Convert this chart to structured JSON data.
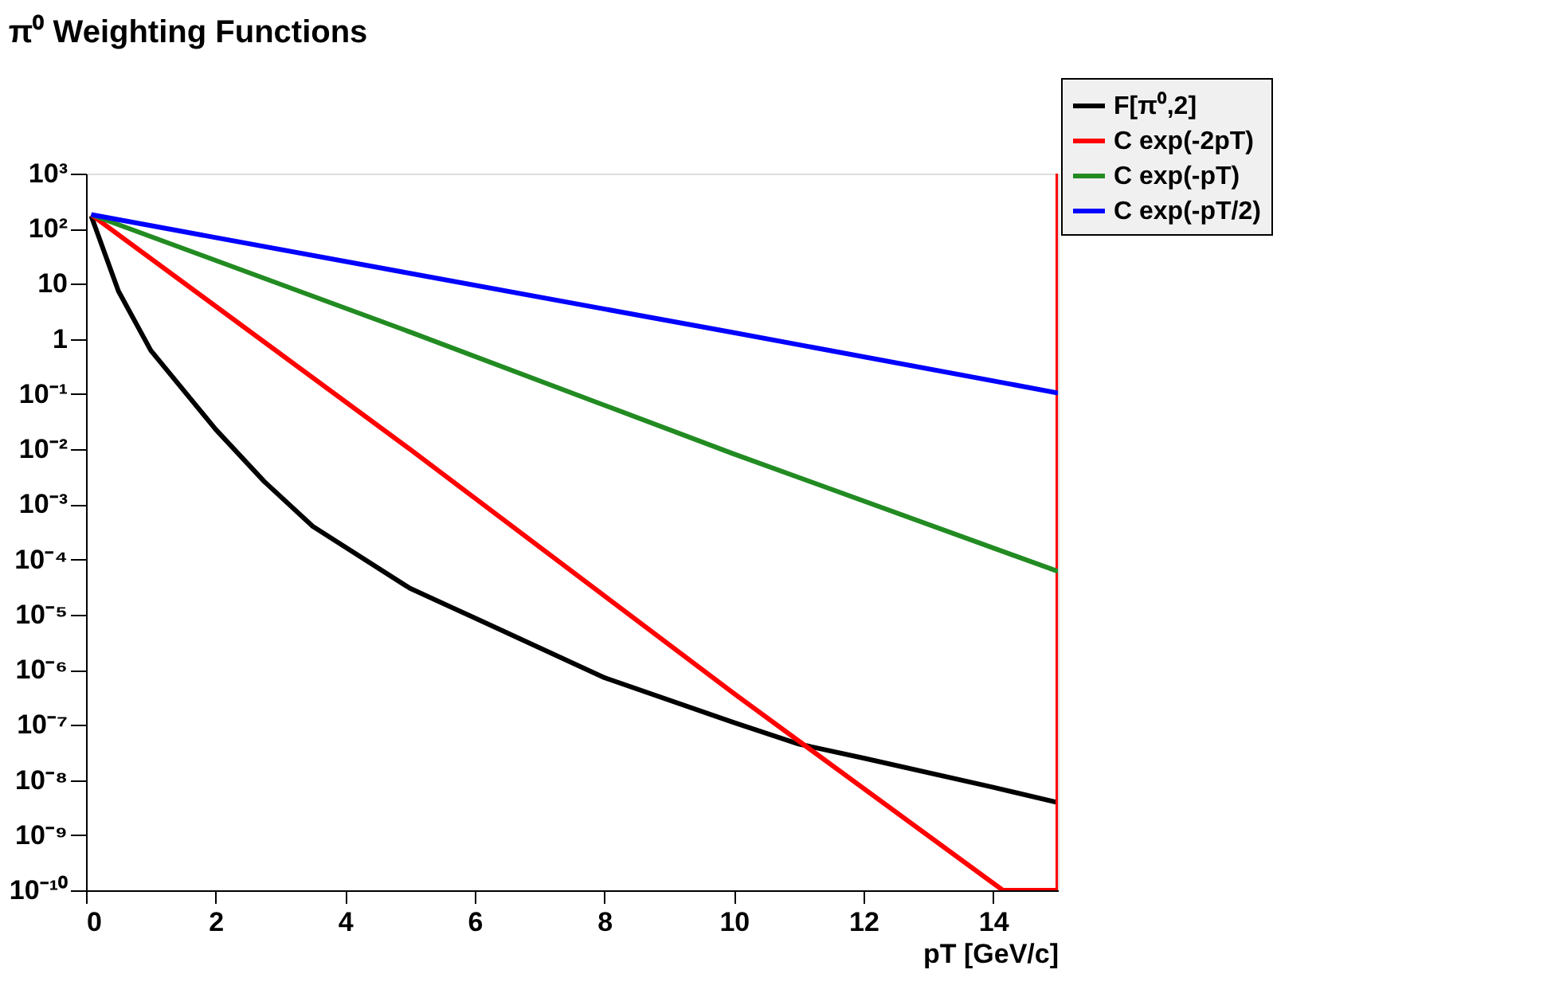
{
  "chart_data": {
    "type": "line",
    "title": "π⁰ Weighting Functions",
    "xlabel": "pT [GeV/c]",
    "xlim": [
      0,
      15
    ],
    "xticks": [
      0,
      2,
      4,
      6,
      8,
      10,
      12,
      14
    ],
    "ylim": [
      1e-10,
      1000
    ],
    "log": true,
    "yticks": [
      {
        "value": 1000,
        "label": "10³"
      },
      {
        "value": 100,
        "label": "10²"
      },
      10,
      1,
      {
        "value": 0.1,
        "label": "10⁻¹"
      },
      {
        "value": 0.01,
        "label": "10⁻²"
      },
      {
        "value": 0.001,
        "label": "10⁻³"
      },
      {
        "value": 0.0001,
        "label": "10⁻⁴"
      },
      {
        "value": 1e-05,
        "label": "10⁻⁵"
      },
      {
        "value": 1e-06,
        "label": "10⁻⁶"
      },
      {
        "value": 1e-07,
        "label": "10⁻⁷"
      },
      {
        "value": 1e-08,
        "label": "10⁻⁸"
      },
      {
        "value": 1e-09,
        "label": "10⁻⁹"
      },
      {
        "value": 1e-10,
        "label": "10⁻¹⁰"
      }
    ],
    "grid": false,
    "legend": "top right",
    "marker": "none",
    "line_style": "solid",
    "series": [
      {
        "name": "F[π⁰,2]",
        "color": "#000000",
        "x": [
          0.08,
          0.5,
          1,
          2,
          2.75,
          3.5,
          5,
          6,
          8,
          10,
          11,
          12,
          14,
          15
        ],
        "values": [
          170,
          7.4,
          0.62,
          0.023,
          0.0026,
          0.0004,
          3e-05,
          8.7e-06,
          7.2e-07,
          1.1e-07,
          4.5e-08,
          2.5e-08,
          7.4e-09,
          3.9e-09
        ]
      },
      {
        "name": "C exp(-2pT)",
        "color": "#ff0000",
        "x": [
          0.08,
          5,
          10,
          14.15,
          15,
          15
        ],
        "values": [
          180,
          0.01,
          3.7e-07,
          1e-10,
          1e-10,
          1000
        ]
      },
      {
        "name": "C exp(-pT)",
        "color": "#228b22",
        "x": [
          0.08,
          5,
          10,
          15
        ],
        "values": [
          180,
          1.34,
          0.0082,
          6.1e-05
        ]
      },
      {
        "name": "C exp(-pT/2)",
        "color": "#0000ff",
        "x": [
          0.08,
          5,
          10,
          15
        ],
        "values": [
          180,
          15.5,
          1.3,
          0.105
        ]
      }
    ]
  }
}
